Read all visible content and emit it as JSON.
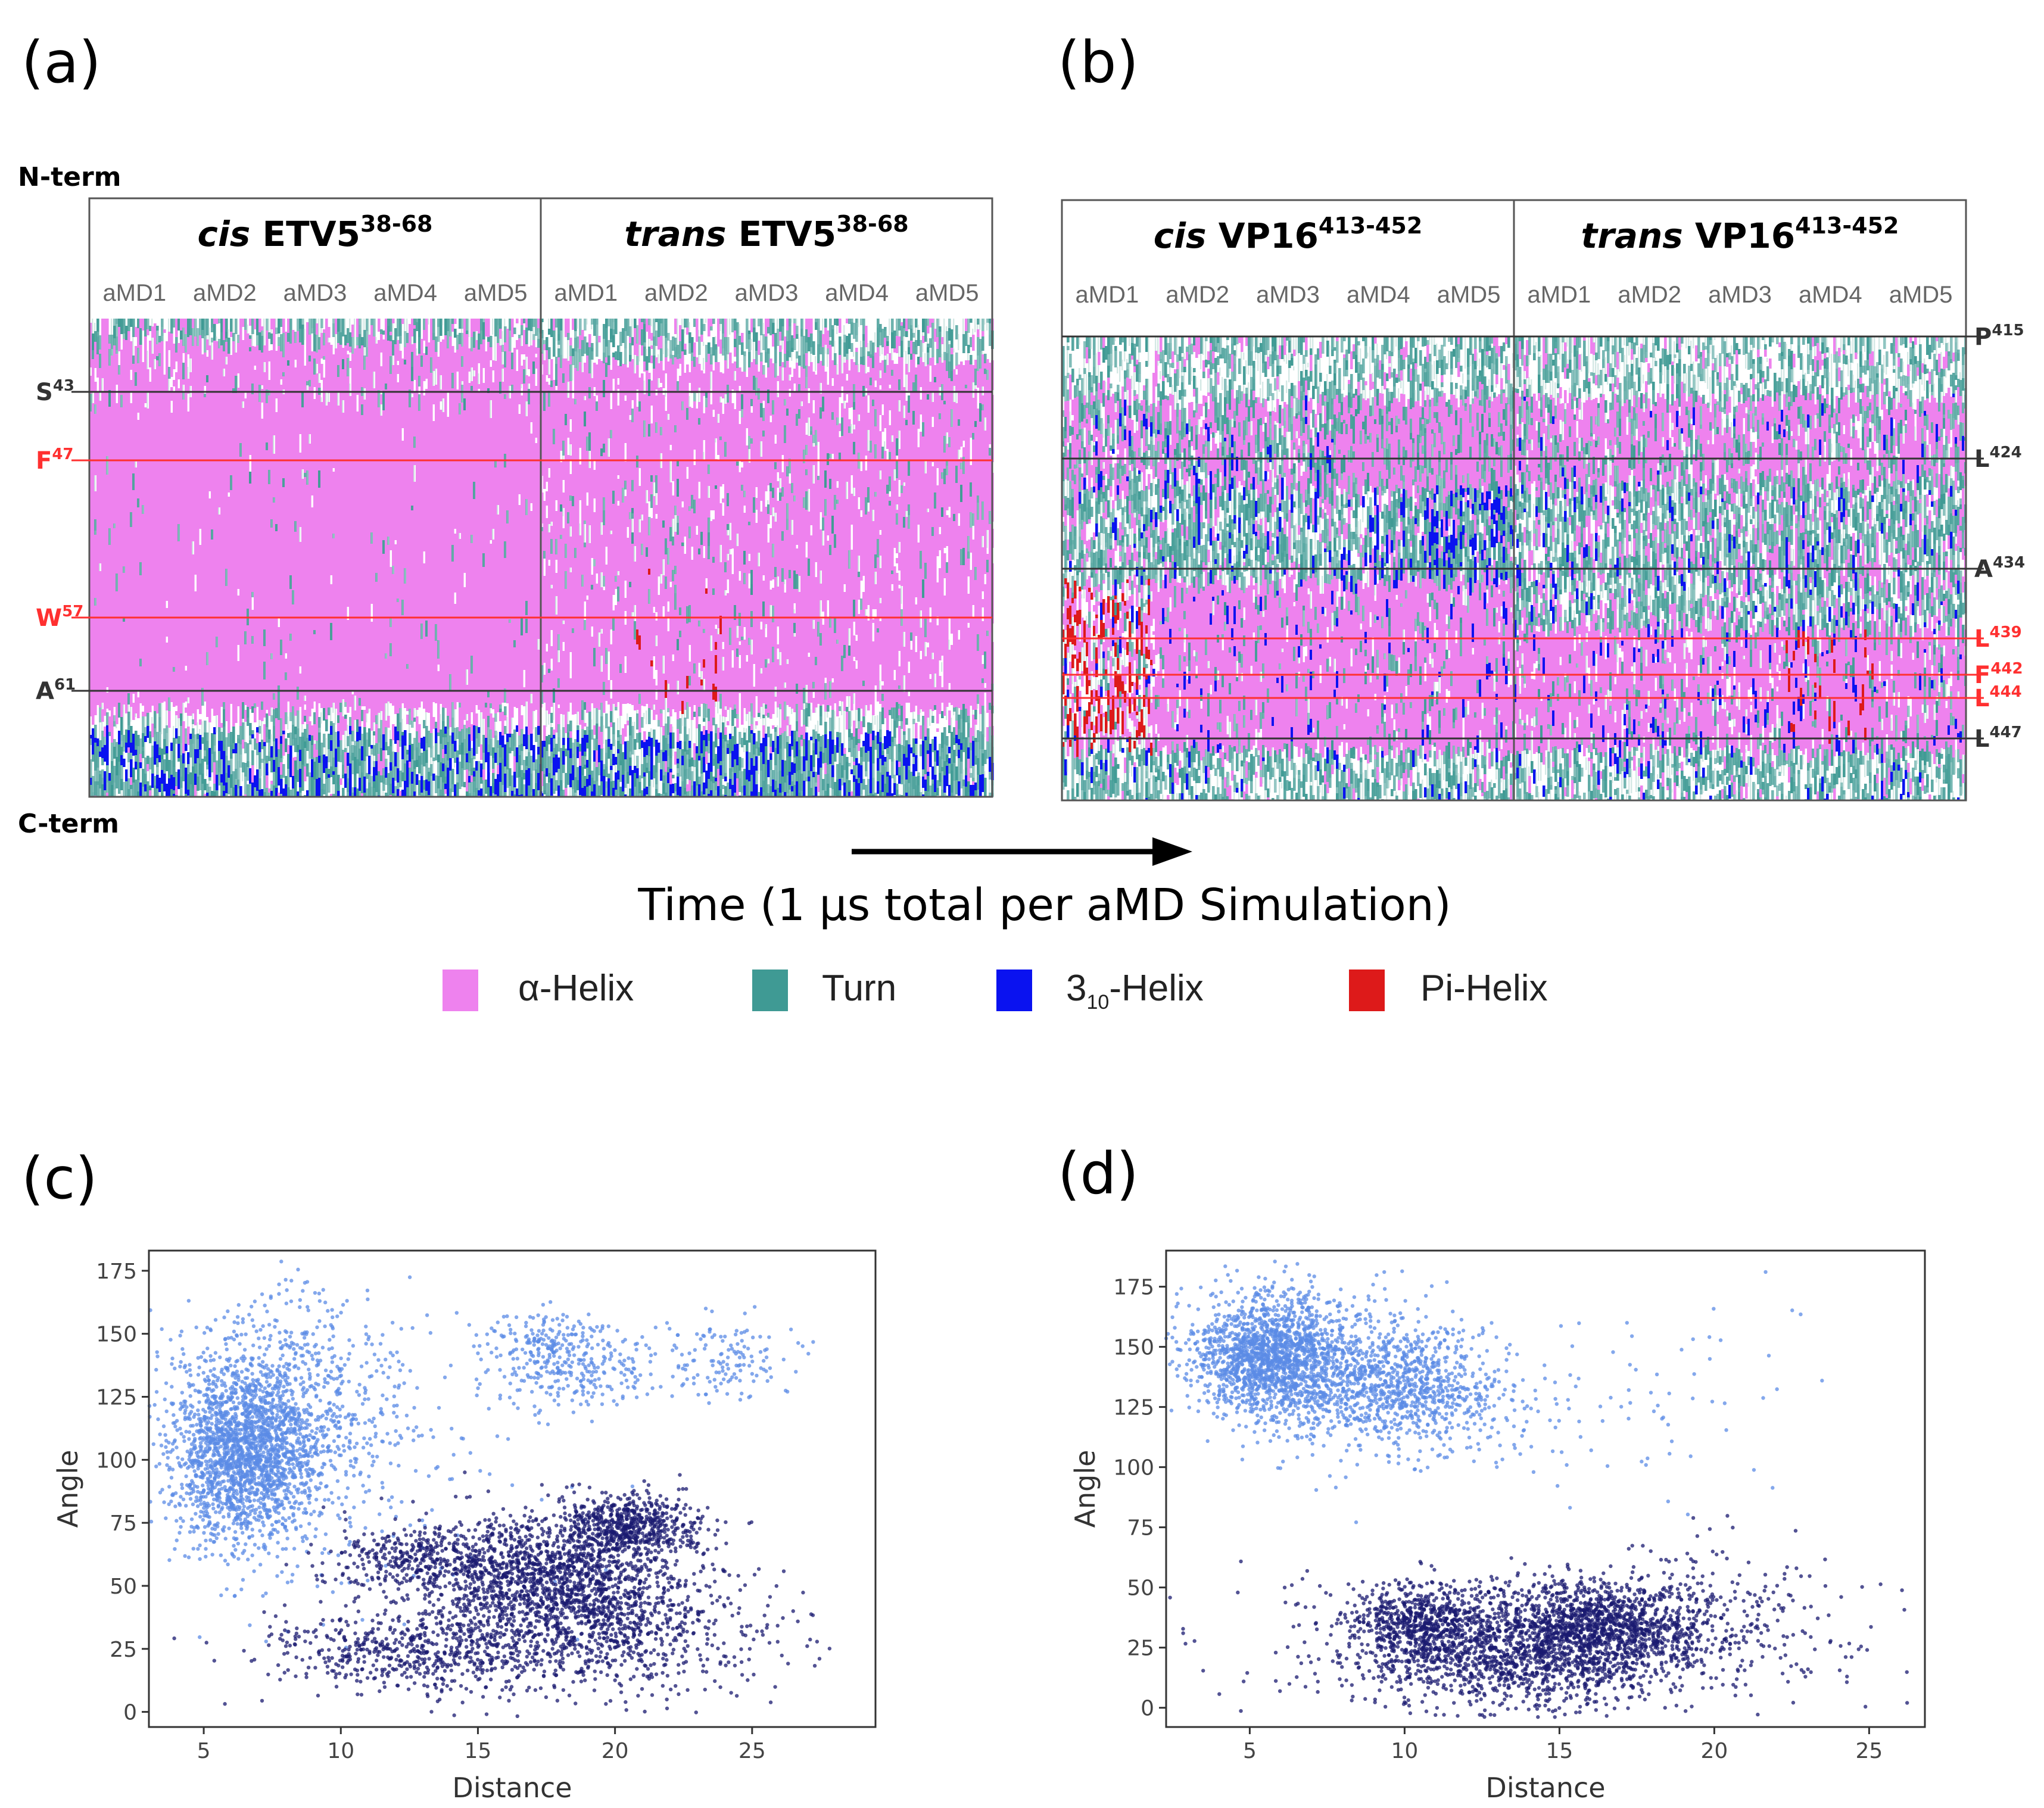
{
  "panels": {
    "a": "(a)",
    "b": "(b)",
    "c": "(c)",
    "d": "(d)"
  },
  "term_labels": {
    "n": "N-term",
    "c": "C-term"
  },
  "colors": {
    "alpha_helix": "#ee82ee",
    "turn": "#3f9a94",
    "three_ten_helix": "#0a12f0",
    "pi_helix": "#dd1a1a",
    "scatter_light": "#5b8be6",
    "scatter_dark": "#191970",
    "marker_black": "#333333",
    "marker_red": "#ff3030"
  },
  "time_axis_label": "Time (1  μs total per aMD Simulation)",
  "legend": [
    {
      "label": "α-Helix",
      "color": "#ee82ee"
    },
    {
      "label": "Turn",
      "color": "#3f9a94"
    },
    {
      "label": "3",
      "sub": "10",
      "suffix": "-Helix",
      "color": "#0a12f0"
    },
    {
      "label": "Pi-Helix",
      "color": "#dd1a1a"
    }
  ],
  "heatmaps": [
    {
      "panel": "a",
      "blocks": [
        {
          "prefix": "cis",
          "name": "ETV5",
          "sup": "38-68"
        },
        {
          "prefix": "trans",
          "name": "ETV5",
          "sup": "38-68"
        }
      ],
      "sims": [
        "aMD1",
        "aMD2",
        "aMD3",
        "aMD4",
        "aMD5"
      ],
      "residues": [
        {
          "base": "S",
          "sup": "43",
          "color": "black",
          "side": "left"
        },
        {
          "base": "F",
          "sup": "47",
          "color": "red",
          "side": "left"
        },
        {
          "base": "W",
          "sup": "57",
          "color": "red",
          "side": "left"
        },
        {
          "base": "A",
          "sup": "61",
          "color": "black",
          "side": "left"
        }
      ]
    },
    {
      "panel": "b",
      "blocks": [
        {
          "prefix": "cis",
          "name": "VP16",
          "sup": "413-452"
        },
        {
          "prefix": "trans",
          "name": "VP16",
          "sup": "413-452"
        }
      ],
      "sims": [
        "aMD1",
        "aMD2",
        "aMD3",
        "aMD4",
        "aMD5"
      ],
      "residues": [
        {
          "base": "P",
          "sup": "415",
          "color": "black",
          "side": "right"
        },
        {
          "base": "L",
          "sup": "424",
          "color": "black",
          "side": "right"
        },
        {
          "base": "A",
          "sup": "434",
          "color": "black",
          "side": "right"
        },
        {
          "base": "L",
          "sup": "439",
          "color": "red",
          "side": "right"
        },
        {
          "base": "F",
          "sup": "442",
          "color": "red",
          "side": "right"
        },
        {
          "base": "L",
          "sup": "444",
          "color": "red",
          "side": "right"
        },
        {
          "base": "L",
          "sup": "447",
          "color": "black",
          "side": "right"
        }
      ]
    }
  ],
  "chart_data": [
    {
      "panel": "c",
      "type": "scatter",
      "title": "",
      "xlabel": "Distance",
      "ylabel": "Angle",
      "xlim": [
        3,
        29.5
      ],
      "ylim": [
        -6,
        183
      ],
      "xticks": [
        5,
        10,
        15,
        20,
        25
      ],
      "yticks": [
        0,
        25,
        50,
        75,
        100,
        125,
        150,
        175
      ],
      "grid": false,
      "series": [
        {
          "name": "light",
          "color": "#5b8be6",
          "clusters": [
            {
              "cx": 6.5,
              "cy": 102,
              "sx": 1.3,
              "sy": 17,
              "n": 1800
            },
            {
              "cx": 7.8,
              "cy": 122,
              "sx": 2.2,
              "sy": 22,
              "n": 700
            },
            {
              "cx": 18.5,
              "cy": 136,
              "sx": 1.5,
              "sy": 8,
              "n": 260
            },
            {
              "cx": 17.2,
              "cy": 148,
              "sx": 1.2,
              "sy": 6,
              "n": 120
            },
            {
              "cx": 23.8,
              "cy": 140,
              "sx": 1.4,
              "sy": 8,
              "n": 140
            },
            {
              "cx": 9.5,
              "cy": 100,
              "sx": 4.0,
              "sy": 35,
              "n": 260
            }
          ]
        },
        {
          "name": "dark",
          "color": "#191970",
          "clusters": [
            {
              "cx": 20.5,
              "cy": 74,
              "sx": 1.3,
              "sy": 6,
              "n": 600
            },
            {
              "cx": 17.8,
              "cy": 53,
              "sx": 2.2,
              "sy": 13,
              "n": 1300
            },
            {
              "cx": 13.0,
              "cy": 60,
              "sx": 1.7,
              "sy": 7,
              "n": 400
            },
            {
              "cx": 12.5,
              "cy": 24,
              "sx": 2.5,
              "sy": 8,
              "n": 550
            },
            {
              "cx": 19.0,
              "cy": 32,
              "sx": 3.0,
              "sy": 12,
              "n": 600
            },
            {
              "cx": 21.0,
              "cy": 35,
              "sx": 3.5,
              "sy": 18,
              "n": 200
            }
          ]
        }
      ]
    },
    {
      "panel": "d",
      "type": "scatter",
      "title": "",
      "xlabel": "Distance",
      "ylabel": "Angle",
      "xlim": [
        2.3,
        26.8
      ],
      "ylim": [
        -8,
        190
      ],
      "xticks": [
        5,
        10,
        15,
        20,
        25
      ],
      "yticks": [
        0,
        25,
        50,
        75,
        100,
        125,
        150,
        175
      ],
      "grid": false,
      "series": [
        {
          "name": "light",
          "color": "#5b8be6",
          "clusters": [
            {
              "cx": 5.6,
              "cy": 147,
              "sx": 1.2,
              "sy": 13,
              "n": 1500
            },
            {
              "cx": 8.0,
              "cy": 138,
              "sx": 1.8,
              "sy": 16,
              "n": 800
            },
            {
              "cx": 10.5,
              "cy": 132,
              "sx": 1.3,
              "sy": 11,
              "n": 500
            },
            {
              "cx": 13.0,
              "cy": 125,
              "sx": 3.0,
              "sy": 18,
              "n": 120
            },
            {
              "cx": 18.5,
              "cy": 125,
              "sx": 2.5,
              "sy": 22,
              "n": 30
            }
          ]
        },
        {
          "name": "dark",
          "color": "#191970",
          "clusters": [
            {
              "cx": 10.6,
              "cy": 36,
              "sx": 1.2,
              "sy": 7,
              "n": 600
            },
            {
              "cx": 16.3,
              "cy": 33,
              "sx": 1.8,
              "sy": 10,
              "n": 1200
            },
            {
              "cx": 13.0,
              "cy": 20,
              "sx": 2.5,
              "sy": 10,
              "n": 800
            },
            {
              "cx": 15.0,
              "cy": 26,
              "sx": 4.5,
              "sy": 14,
              "n": 700
            },
            {
              "cx": 20.0,
              "cy": 45,
              "sx": 2.0,
              "sy": 15,
              "n": 120
            }
          ]
        }
      ]
    }
  ]
}
